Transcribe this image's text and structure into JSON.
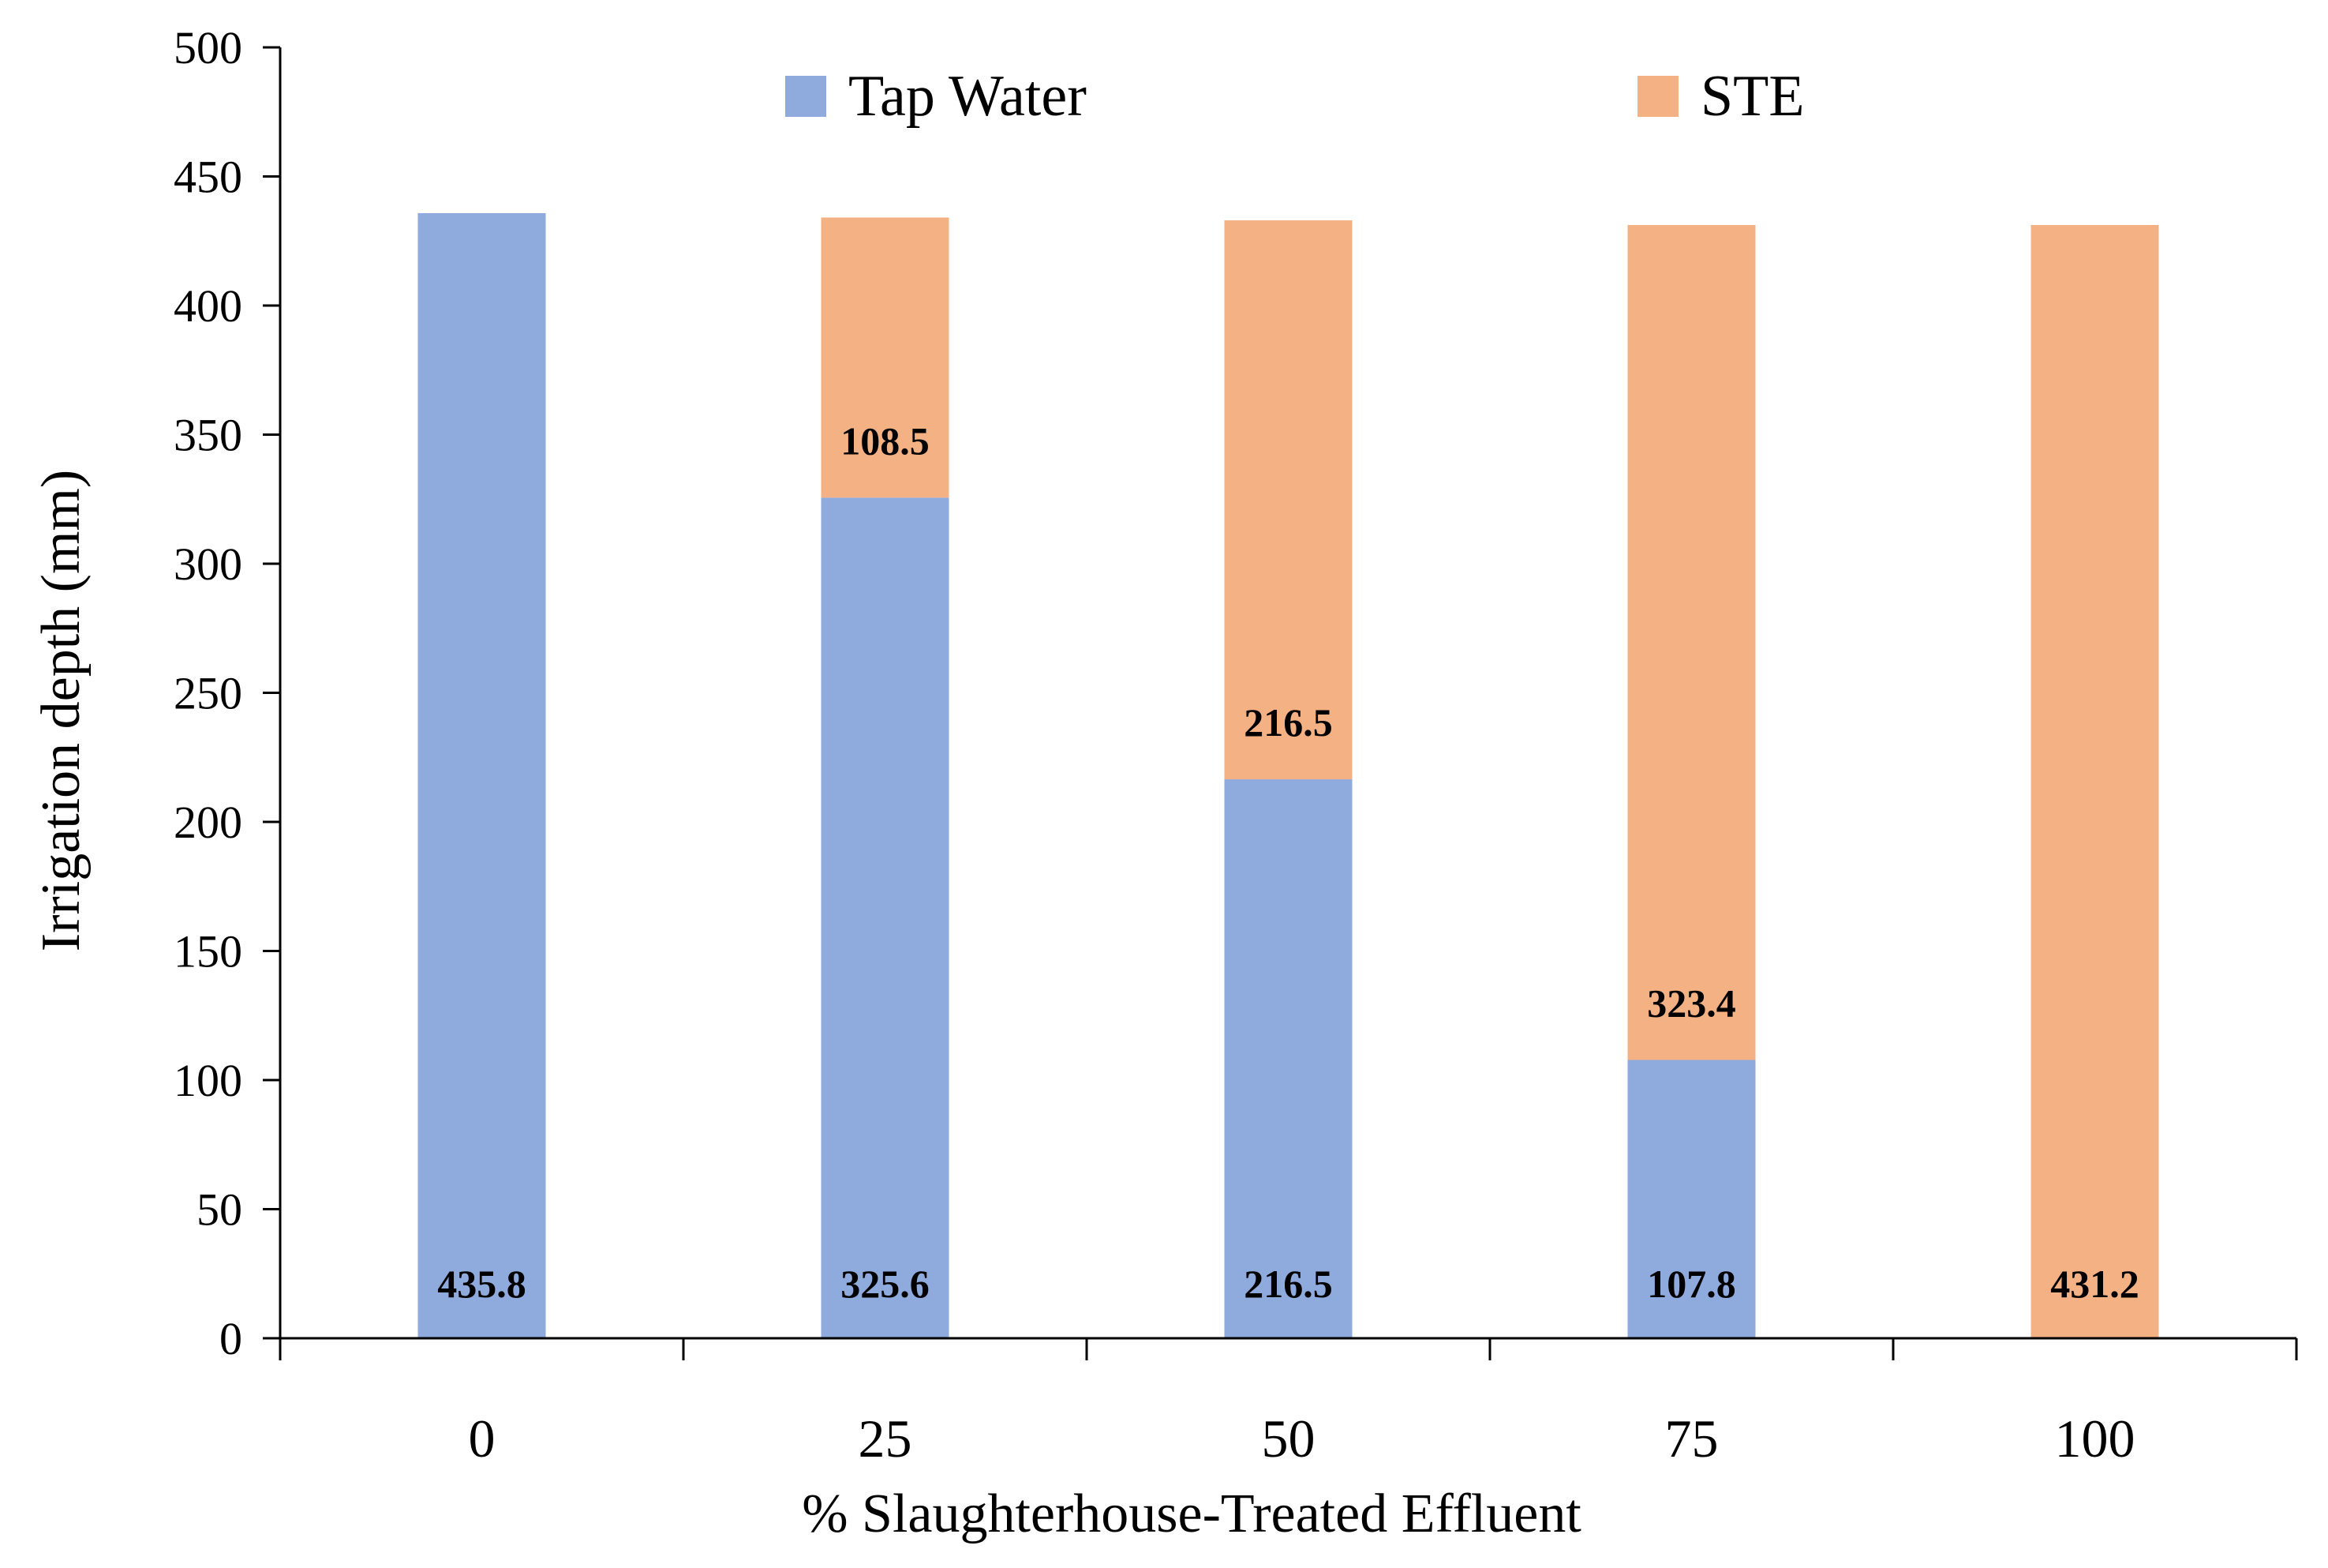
{
  "chart_data": {
    "type": "bar",
    "stacked": true,
    "title": "",
    "xlabel": "% Slaughterhouse-Treated Effluent",
    "ylabel": "Irrigation depth (mm)",
    "ylim": [
      0,
      500
    ],
    "yticks": [
      0,
      50,
      100,
      150,
      200,
      250,
      300,
      350,
      400,
      450,
      500
    ],
    "grid": false,
    "legend_position": "top",
    "categories": [
      "0",
      "25",
      "50",
      "75",
      "100"
    ],
    "series": [
      {
        "name": "Tap Water",
        "color": "#8FAADC",
        "values": [
          435.8,
          325.6,
          216.5,
          107.8,
          0
        ],
        "labels": [
          "435.8",
          "325.6",
          "216.5",
          "107.8",
          ""
        ]
      },
      {
        "name": "STE",
        "color": "#F4B183",
        "values": [
          0,
          108.5,
          216.5,
          323.4,
          431.2
        ],
        "labels": [
          "",
          "108.5",
          "216.5",
          "323.4",
          "431.2"
        ]
      }
    ]
  }
}
